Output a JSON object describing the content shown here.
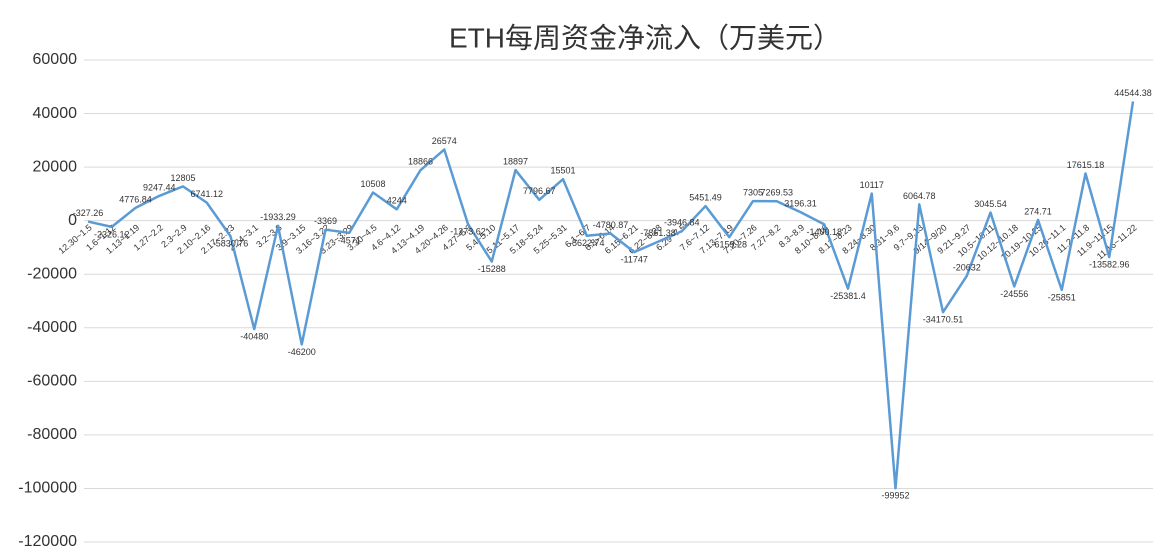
{
  "chart_data": {
    "type": "line",
    "title": "ETH每周资金净流入（万美元）",
    "categories": [
      "12.30~1.5",
      "1.6~1.12",
      "1.13~1.19",
      "1.27~2.2",
      "2.3~2.9",
      "2.10~2.16",
      "2.17~2.23",
      "2.24~3.1",
      "3.2~3.8",
      "3.9~3.15",
      "3.16~3.22",
      "3.23~3.29",
      "3.30~4.5",
      "4.6~4.12",
      "4.13~4.19",
      "4.20~4.26",
      "4.27~5.3",
      "5.4~5.10",
      "5.11~5.17",
      "5.18~5.24",
      "5.25~5.31",
      "6.1~6.7",
      "6.8~6.14",
      "6.15~6.21",
      "6.22~6.28",
      "6.29~7.5",
      "7.6~7.12",
      "7.13~7.19",
      "7.20~7.26",
      "7.27~8.2",
      "8.3~8.9",
      "8.10~8.16",
      "8.17~8.23",
      "8.24~8.30",
      "8.31~9.6",
      "9.7~9.13",
      "9/14~9/20",
      "9.21~9.27",
      "10.5~10.11",
      "10.12~10.18",
      "10.19~10.25",
      "10.26~11.1",
      "11.2~11.8",
      "11.9~11.15",
      "11.16~11.22"
    ],
    "values": [
      -327.26,
      -2326.12,
      4776.84,
      9247.44,
      12805,
      6741.12,
      -5830.76,
      -40480,
      -1933.29,
      -46200,
      -3369,
      -4571,
      10508,
      4244,
      18866,
      26574,
      -1273.62,
      -15288,
      18897,
      7796.67,
      15501,
      -5622.74,
      -4780.87,
      -11747,
      -7861.38,
      -3946.84,
      5451.49,
      -6159.28,
      7305,
      7269.53,
      3196.31,
      -1400.18,
      -25381.4,
      10117,
      -99952,
      6064.78,
      -34170.51,
      -20632,
      3045.54,
      -24556,
      274.71,
      -25851,
      17615.18,
      -13582.96,
      44544.38
    ],
    "color": "#5b9bd5",
    "ylim": [
      -120000,
      60000
    ],
    "yticks": [
      -120000,
      -100000,
      -80000,
      -60000,
      -40000,
      -20000,
      0,
      20000,
      40000,
      60000
    ],
    "grid": true
  }
}
